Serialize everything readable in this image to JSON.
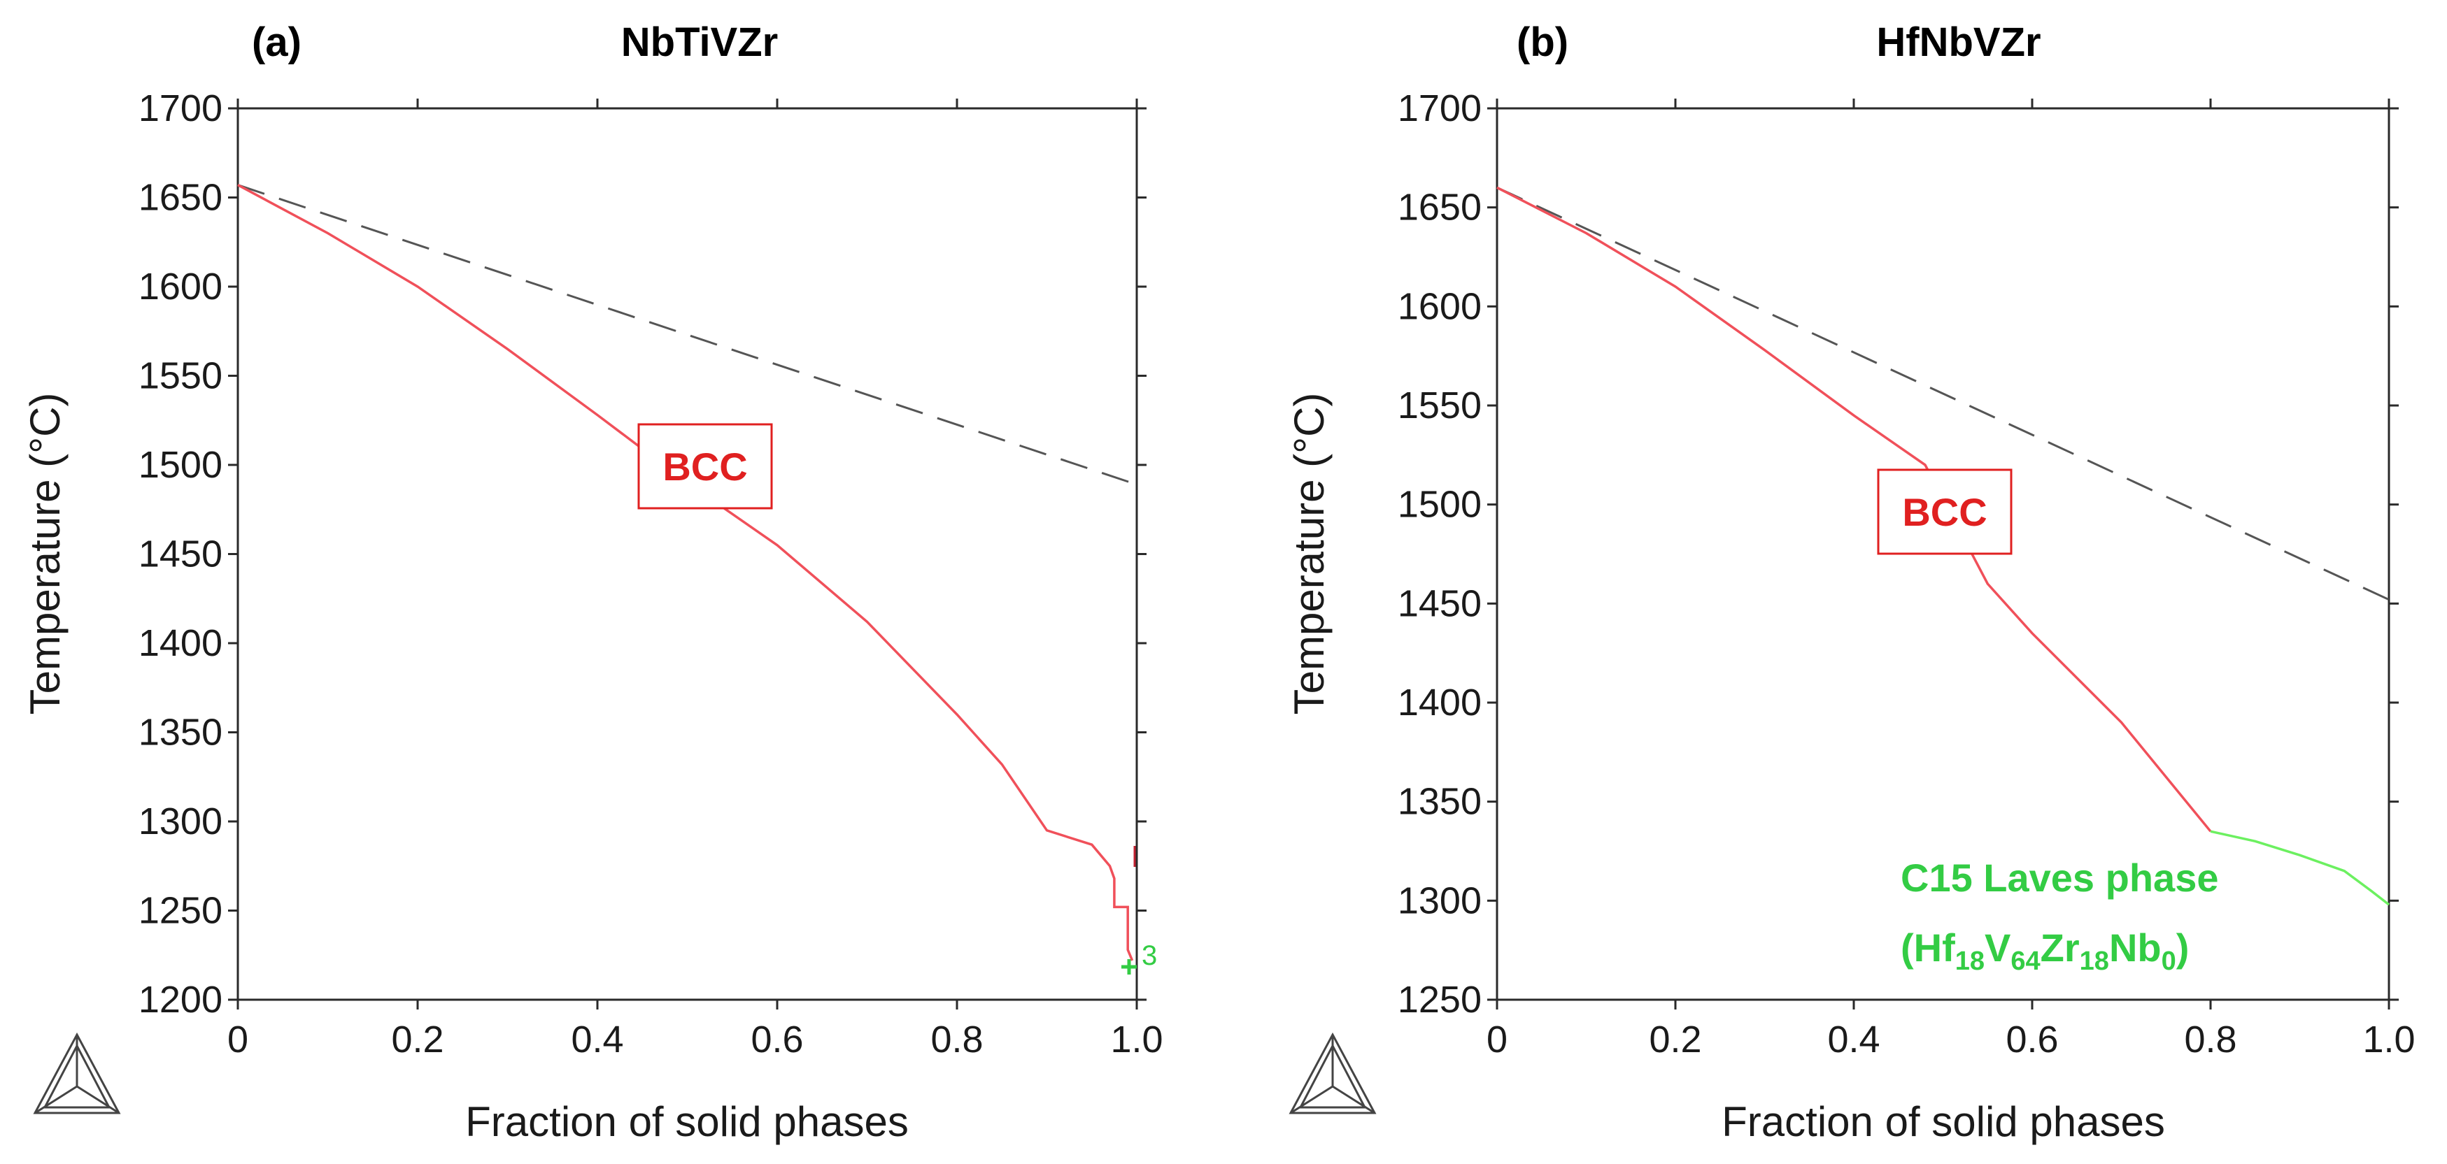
{
  "chart_data": [
    {
      "type": "line",
      "panel_tag": "(a)",
      "title": "NbTiVZr",
      "xlabel": "Fraction of solid phases",
      "ylabel": "Temperature (°C)",
      "xlim": [
        0,
        1.0
      ],
      "ylim": [
        1200,
        1700
      ],
      "x_ticks": [
        "0",
        "0.2",
        "0.4",
        "0.6",
        "0.8",
        "1.0"
      ],
      "y_ticks": [
        "1200",
        "1250",
        "1300",
        "1350",
        "1400",
        "1450",
        "1500",
        "1550",
        "1600",
        "1650",
        "1700"
      ],
      "series": [
        {
          "name": "Equilibrium (dashed)",
          "style": "dashed",
          "color": "#555555",
          "x": [
            0,
            1.0
          ],
          "y": [
            1657,
            1489
          ]
        },
        {
          "name": "BCC",
          "style": "solid",
          "color": "#f0505a",
          "x": [
            0,
            0.1,
            0.2,
            0.3,
            0.4,
            0.5,
            0.6,
            0.7,
            0.8,
            0.85,
            0.9,
            0.95,
            0.97,
            0.975,
            0.975,
            0.99,
            0.99,
            0.995
          ],
          "y": [
            1657,
            1630,
            1600,
            1565,
            1528,
            1490,
            1455,
            1412,
            1360,
            1332,
            1295,
            1287,
            1275,
            1268,
            1252,
            1252,
            1228,
            1222
          ]
        }
      ],
      "annotations": [
        {
          "text": "BCC",
          "x": 0.52,
          "y": 1500,
          "color": "#e02020",
          "boxed": true
        },
        {
          "text": "3",
          "x": 1.0,
          "y": 1228,
          "color": "#33cc44",
          "boxed": false
        }
      ]
    },
    {
      "type": "line",
      "panel_tag": "(b)",
      "title": "HfNbVZr",
      "xlabel": "Fraction of solid phases",
      "ylabel": "Temperature (°C)",
      "xlim": [
        0,
        1.0
      ],
      "ylim": [
        1250,
        1700
      ],
      "x_ticks": [
        "0",
        "0.2",
        "0.4",
        "0.6",
        "0.8",
        "1.0"
      ],
      "y_ticks": [
        "1250",
        "1300",
        "1350",
        "1400",
        "1450",
        "1500",
        "1550",
        "1600",
        "1650",
        "1700"
      ],
      "series": [
        {
          "name": "Equilibrium (dashed)",
          "style": "dashed",
          "color": "#555555",
          "x": [
            0,
            1.0
          ],
          "y": [
            1660,
            1452
          ]
        },
        {
          "name": "BCC",
          "style": "solid",
          "color": "#f0505a",
          "x": [
            0,
            0.1,
            0.2,
            0.3,
            0.4,
            0.48,
            0.55,
            0.6,
            0.7,
            0.8
          ],
          "y": [
            1660,
            1637,
            1610,
            1578,
            1545,
            1520,
            1460,
            1435,
            1390,
            1335
          ]
        },
        {
          "name": "C15 Laves phase",
          "style": "solid",
          "color": "#6cf060",
          "x": [
            0.8,
            0.85,
            0.9,
            0.95,
            0.98,
            1.0
          ],
          "y": [
            1335,
            1330,
            1323,
            1315,
            1305,
            1298
          ]
        }
      ],
      "annotations": [
        {
          "text": "BCC",
          "x": 0.55,
          "y": 1508,
          "color": "#e02020",
          "boxed": true
        },
        {
          "text": "C15 Laves phase",
          "x": 0.82,
          "y": 1313,
          "color": "#33cc44",
          "boxed": false
        },
        {
          "text": "(Hf18V64Zr18Nb0)",
          "x": 0.82,
          "y": 1284,
          "color": "#33cc44",
          "boxed": false
        }
      ]
    }
  ],
  "logo": {
    "name": "triangle-logo-icon"
  }
}
